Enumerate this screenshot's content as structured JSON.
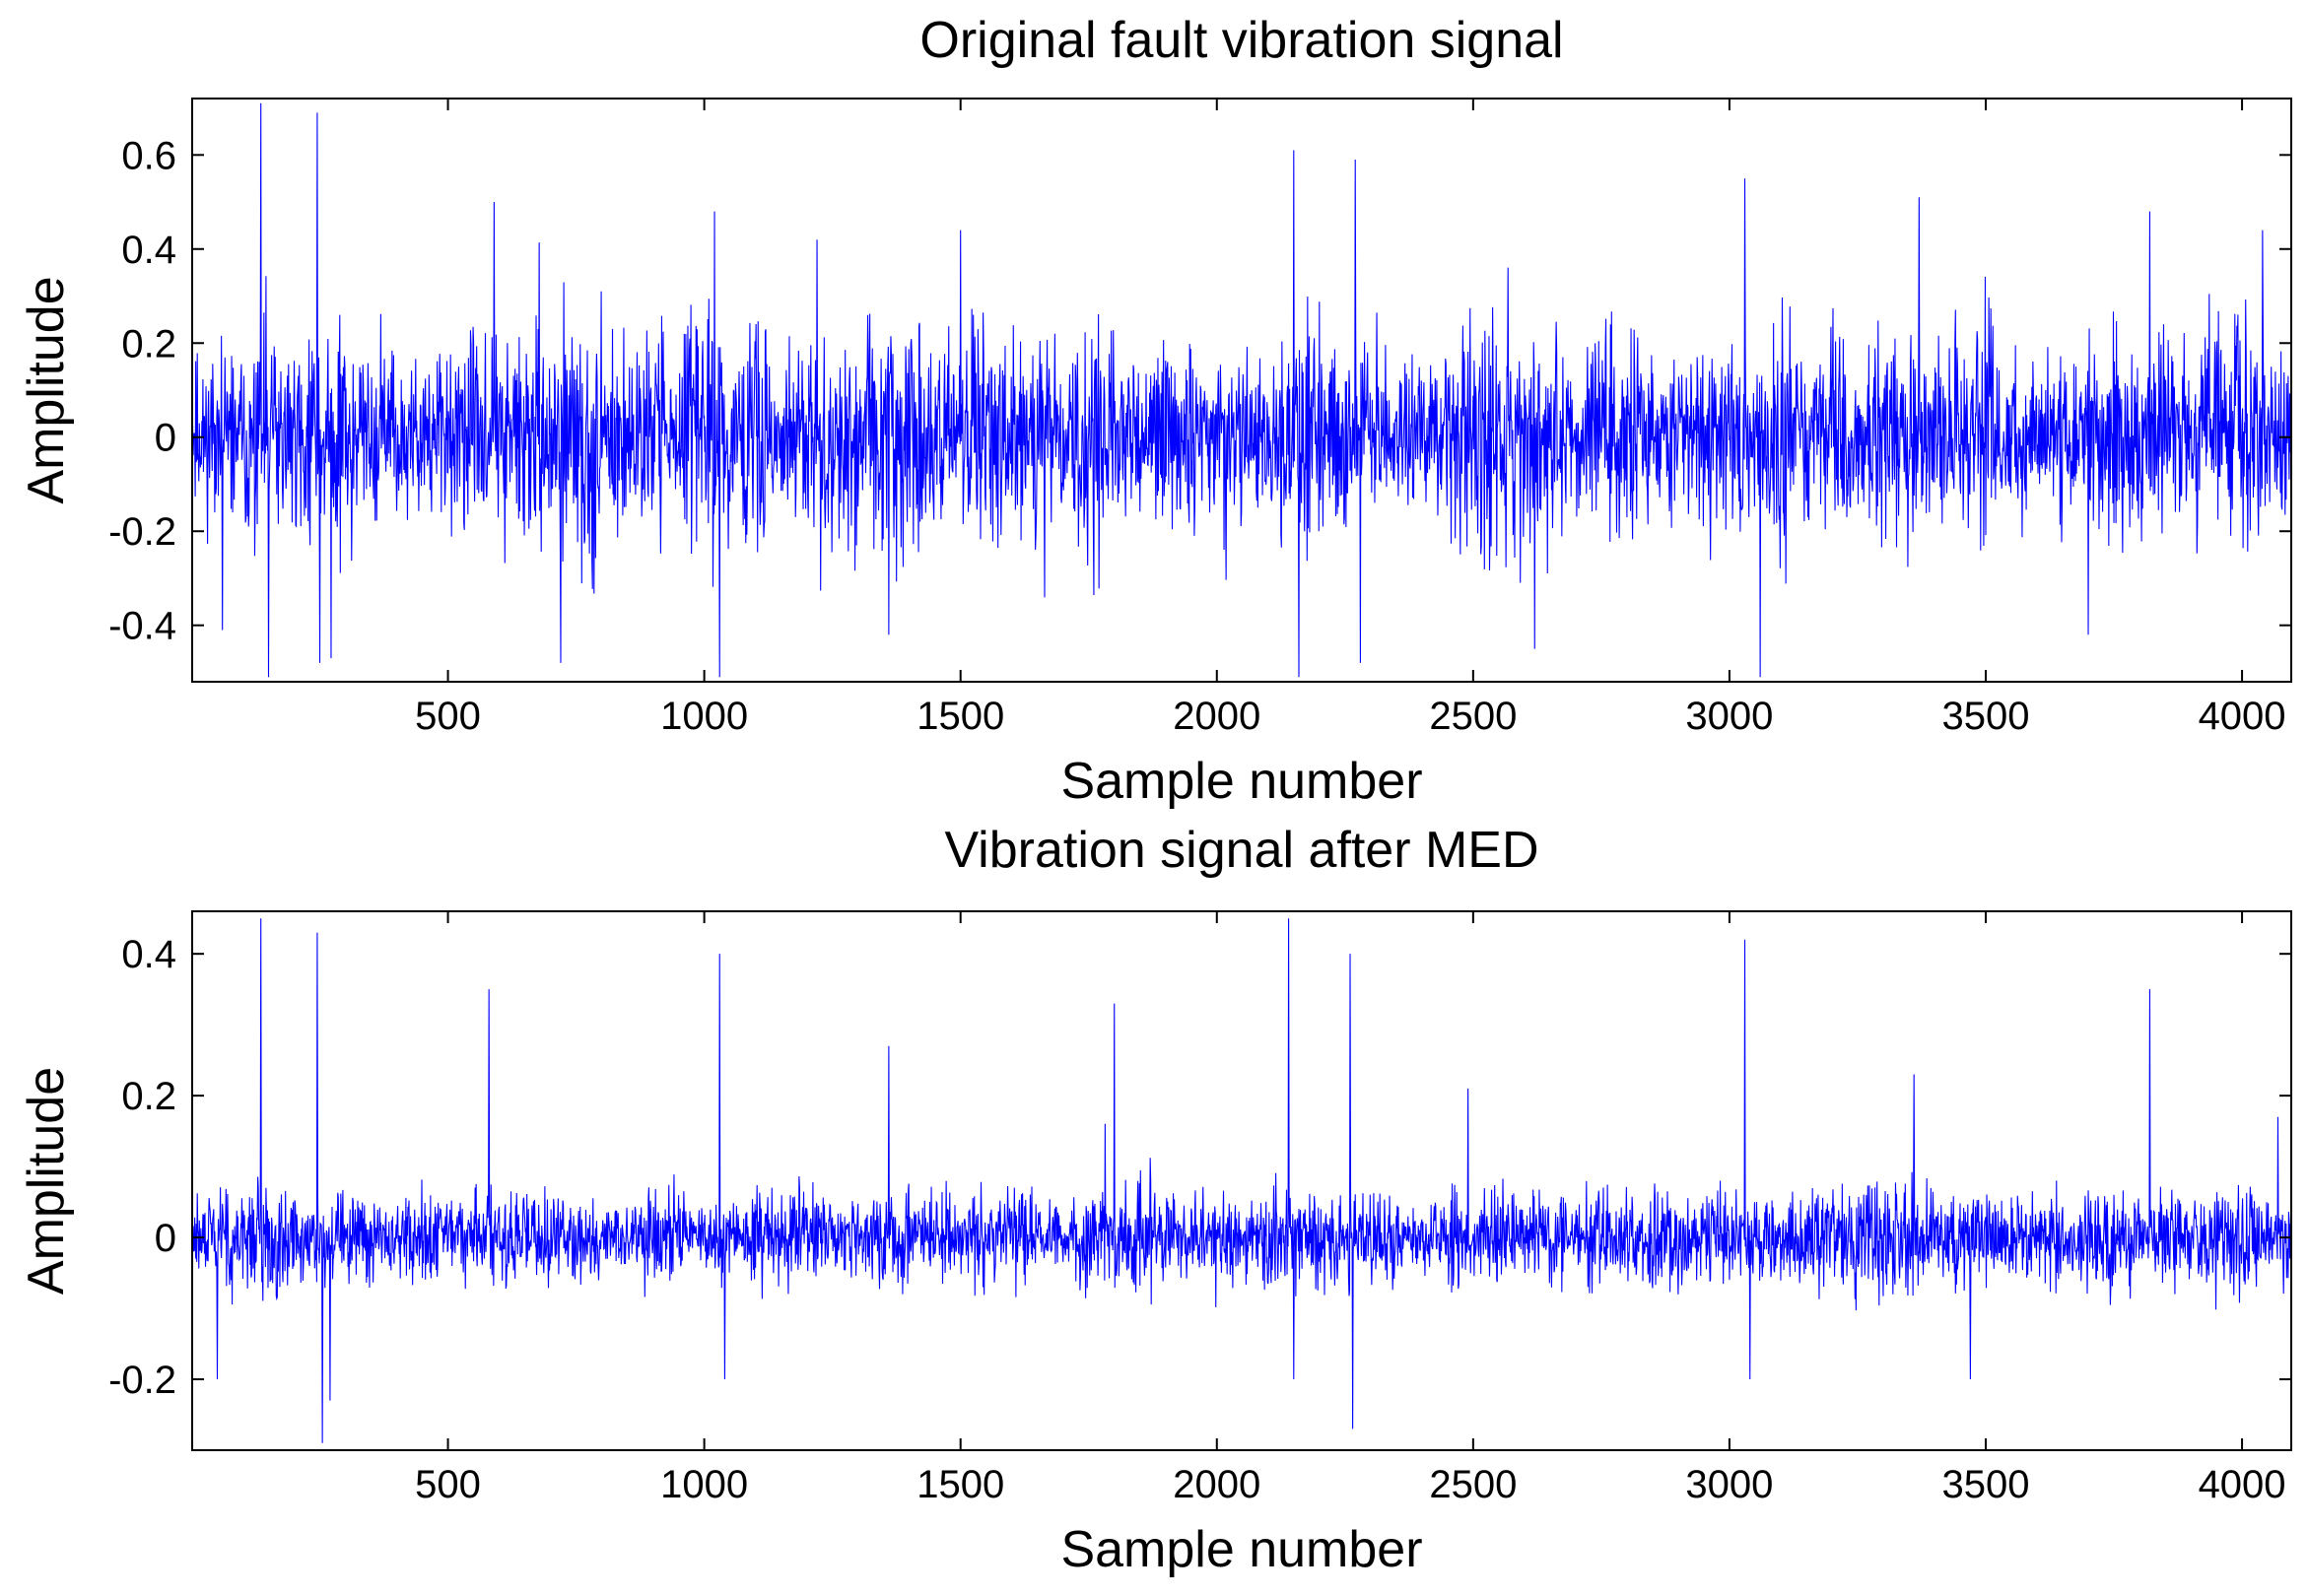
{
  "chart_data": [
    {
      "type": "line",
      "title": "Original fault vibration signal",
      "xlabel": "Sample number",
      "ylabel": "Amplitude",
      "xlim": [
        1,
        4096
      ],
      "ylim": [
        -0.52,
        0.72
      ],
      "xticks": [
        500,
        1000,
        1500,
        2000,
        2500,
        3000,
        3500,
        4000
      ],
      "yticks": [
        -0.4,
        -0.2,
        0,
        0.2,
        0.4,
        0.6
      ],
      "xtick_labels": [
        "500",
        "1000",
        "1500",
        "2000",
        "2500",
        "3000",
        "3500",
        "4000"
      ],
      "ytick_labels": [
        "-0.4",
        "-0.2",
        "0",
        "0.2",
        "0.4",
        "0.6"
      ],
      "grid": false,
      "line_color": "#0000ff",
      "noise": {
        "amplitude": 0.19,
        "seed": 11
      },
      "peaks": [
        {
          "x": 60,
          "y": -0.41
        },
        {
          "x": 135,
          "y": 0.72
        },
        {
          "x": 150,
          "y": -0.52
        },
        {
          "x": 245,
          "y": 0.69
        },
        {
          "x": 250,
          "y": -0.48
        },
        {
          "x": 272,
          "y": -0.47
        },
        {
          "x": 590,
          "y": 0.5
        },
        {
          "x": 720,
          "y": -0.48
        },
        {
          "x": 1020,
          "y": 0.48
        },
        {
          "x": 1030,
          "y": -0.52
        },
        {
          "x": 1220,
          "y": 0.42
        },
        {
          "x": 1360,
          "y": -0.42
        },
        {
          "x": 1500,
          "y": 0.44
        },
        {
          "x": 2150,
          "y": 0.61
        },
        {
          "x": 2160,
          "y": -0.56
        },
        {
          "x": 2270,
          "y": 0.59
        },
        {
          "x": 2280,
          "y": -0.48
        },
        {
          "x": 2620,
          "y": -0.45
        },
        {
          "x": 3030,
          "y": 0.55
        },
        {
          "x": 3060,
          "y": -0.52
        },
        {
          "x": 3370,
          "y": 0.51
        },
        {
          "x": 3700,
          "y": -0.42
        },
        {
          "x": 3820,
          "y": 0.48
        },
        {
          "x": 4040,
          "y": 0.44
        }
      ]
    },
    {
      "type": "line",
      "title": "Vibration signal after MED",
      "xlabel": "Sample number",
      "ylabel": "Amplitude",
      "xlim": [
        1,
        4096
      ],
      "ylim": [
        -0.3,
        0.46
      ],
      "xticks": [
        500,
        1000,
        1500,
        2000,
        2500,
        3000,
        3500,
        4000
      ],
      "yticks": [
        -0.2,
        0,
        0.2,
        0.4
      ],
      "xtick_labels": [
        "500",
        "1000",
        "1500",
        "2000",
        "2500",
        "3000",
        "3500",
        "4000"
      ],
      "ytick_labels": [
        "-0.2",
        "0",
        "0.2",
        "0.4"
      ],
      "grid": false,
      "line_color": "#0000ff",
      "noise": {
        "amplitude": 0.06,
        "seed": 29
      },
      "peaks": [
        {
          "x": 50,
          "y": -0.2
        },
        {
          "x": 135,
          "y": 0.46
        },
        {
          "x": 245,
          "y": 0.43
        },
        {
          "x": 255,
          "y": -0.3
        },
        {
          "x": 270,
          "y": -0.23
        },
        {
          "x": 580,
          "y": 0.35
        },
        {
          "x": 1030,
          "y": 0.4
        },
        {
          "x": 1040,
          "y": -0.2
        },
        {
          "x": 1360,
          "y": 0.27
        },
        {
          "x": 1800,
          "y": 0.33
        },
        {
          "x": 2140,
          "y": 0.46
        },
        {
          "x": 2150,
          "y": -0.2
        },
        {
          "x": 2260,
          "y": 0.4
        },
        {
          "x": 2265,
          "y": -0.27
        },
        {
          "x": 2490,
          "y": 0.21
        },
        {
          "x": 3030,
          "y": 0.42
        },
        {
          "x": 3040,
          "y": -0.2
        },
        {
          "x": 3360,
          "y": 0.23
        },
        {
          "x": 3470,
          "y": -0.2
        },
        {
          "x": 3820,
          "y": 0.35
        },
        {
          "x": 4070,
          "y": 0.17
        }
      ]
    }
  ]
}
